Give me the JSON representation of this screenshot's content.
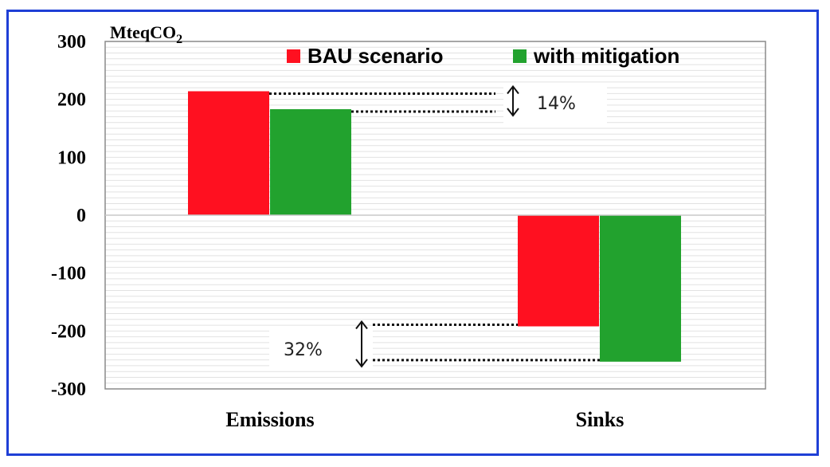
{
  "chart_data": {
    "type": "bar",
    "title": "",
    "ylabel": "MteqCO",
    "ylabel_subscript": "2",
    "ylim": [
      -300,
      300
    ],
    "yticks": [
      "300",
      "200",
      "100",
      "0",
      "-100",
      "-200",
      "-300"
    ],
    "categories": [
      "Emissions",
      "Sinks"
    ],
    "series": [
      {
        "name": "BAU scenario",
        "color": "#ff1020",
        "values": [
          214,
          -192
        ]
      },
      {
        "name": "with mitigation",
        "color": "#22a22e",
        "values": [
          183,
          -253
        ]
      }
    ],
    "legend_position": "top",
    "grid": true,
    "annotations": [
      {
        "text": "14%",
        "category": "Emissions"
      },
      {
        "text": "32%",
        "category": "Sinks"
      }
    ]
  }
}
